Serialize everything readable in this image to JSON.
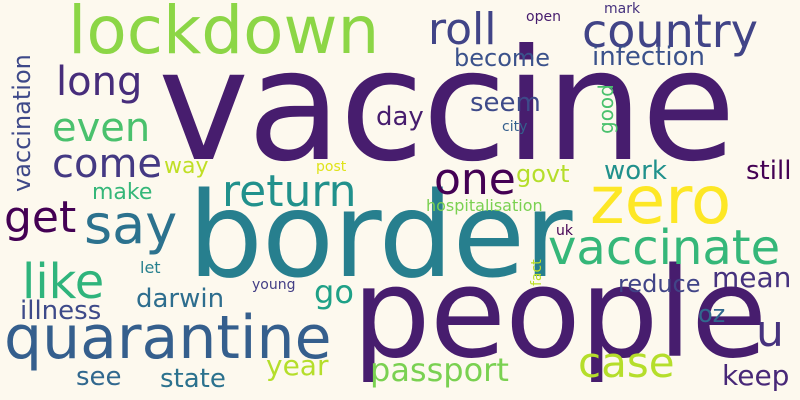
{
  "colors": {
    "background": "#fdf9ee",
    "palette": [
      "#440154",
      "#46327e",
      "#365c8d",
      "#277f8e",
      "#1fa187",
      "#4ac16d",
      "#a0da39",
      "#fde725"
    ]
  },
  "words": [
    {
      "text": "vaccine",
      "color": "#471d6e"
    },
    {
      "text": "border",
      "color": "#277f8e"
    },
    {
      "text": "people",
      "color": "#471d6e"
    },
    {
      "text": "lockdown",
      "color": "#8cd646"
    },
    {
      "text": "quarantine",
      "color": "#355f8d"
    },
    {
      "text": "zero",
      "color": "#fde725"
    },
    {
      "text": "country",
      "color": "#414487"
    },
    {
      "text": "return",
      "color": "#21918c"
    },
    {
      "text": "say",
      "color": "#2c728e"
    },
    {
      "text": "vaccinate",
      "color": "#35b779"
    },
    {
      "text": "case",
      "color": "#b5de2b"
    },
    {
      "text": "like",
      "color": "#2fb47c"
    },
    {
      "text": "one",
      "color": "#440154"
    },
    {
      "text": "roll",
      "color": "#414487"
    },
    {
      "text": "long",
      "color": "#472d7b"
    },
    {
      "text": "come",
      "color": "#443983"
    },
    {
      "text": "even",
      "color": "#4ac16d"
    },
    {
      "text": "get",
      "color": "#440154"
    },
    {
      "text": "u",
      "color": "#46327e"
    },
    {
      "text": "infection",
      "color": "#3b528b"
    },
    {
      "text": "become",
      "color": "#3b528b"
    },
    {
      "text": "mean",
      "color": "#46327e"
    },
    {
      "text": "passport",
      "color": "#7ad151"
    },
    {
      "text": "vaccination",
      "color": "#3e4989"
    },
    {
      "text": "illness",
      "color": "#3e4a89"
    },
    {
      "text": "darwin",
      "color": "#2e6e8e"
    },
    {
      "text": "state",
      "color": "#2c728e"
    },
    {
      "text": "year",
      "color": "#b5de2b"
    },
    {
      "text": "keep",
      "color": "#482878"
    },
    {
      "text": "see",
      "color": "#31688e"
    },
    {
      "text": "seem",
      "color": "#3e4a89"
    },
    {
      "text": "day",
      "color": "#471d6e"
    },
    {
      "text": "work",
      "color": "#21918c"
    },
    {
      "text": "still",
      "color": "#440154"
    },
    {
      "text": "govt",
      "color": "#b5de2b"
    },
    {
      "text": "go",
      "color": "#1fa187"
    },
    {
      "text": "reduce",
      "color": "#414487"
    },
    {
      "text": "make",
      "color": "#35b779"
    },
    {
      "text": "way",
      "color": "#c0df25"
    },
    {
      "text": "oz",
      "color": "#31688e"
    },
    {
      "text": "good",
      "color": "#4ac16d"
    },
    {
      "text": "hospitalisation",
      "color": "#7ad151"
    },
    {
      "text": "let",
      "color": "#27808e"
    },
    {
      "text": "young",
      "color": "#433e85"
    },
    {
      "text": "city",
      "color": "#355f8d"
    },
    {
      "text": "open",
      "color": "#471d6e"
    },
    {
      "text": "mark",
      "color": "#46327e"
    },
    {
      "text": "post",
      "color": "#dfe318"
    },
    {
      "text": "uk",
      "color": "#440154"
    },
    {
      "text": "fact",
      "color": "#bddf26"
    }
  ]
}
